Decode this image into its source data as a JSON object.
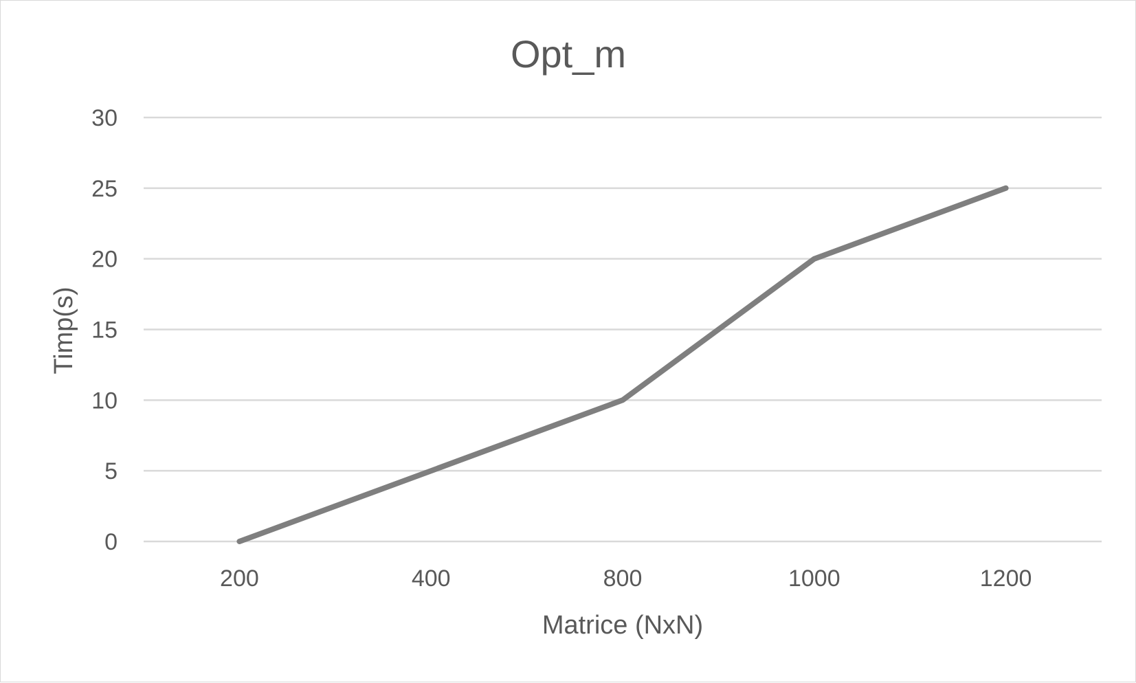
{
  "chart_data": {
    "type": "line",
    "title": "Opt_m",
    "xlabel": "Matrice (NxN)",
    "ylabel": "Timp(s)",
    "categories": [
      "200",
      "400",
      "800",
      "1000",
      "1200"
    ],
    "series": [
      {
        "name": "Opt_m",
        "values": [
          0,
          5,
          10,
          20,
          25
        ],
        "color": "#7f7f7f"
      }
    ],
    "ylim": [
      0,
      30
    ],
    "yticks": [
      0,
      5,
      10,
      15,
      20,
      25,
      30
    ],
    "grid": true,
    "legend": "none"
  }
}
